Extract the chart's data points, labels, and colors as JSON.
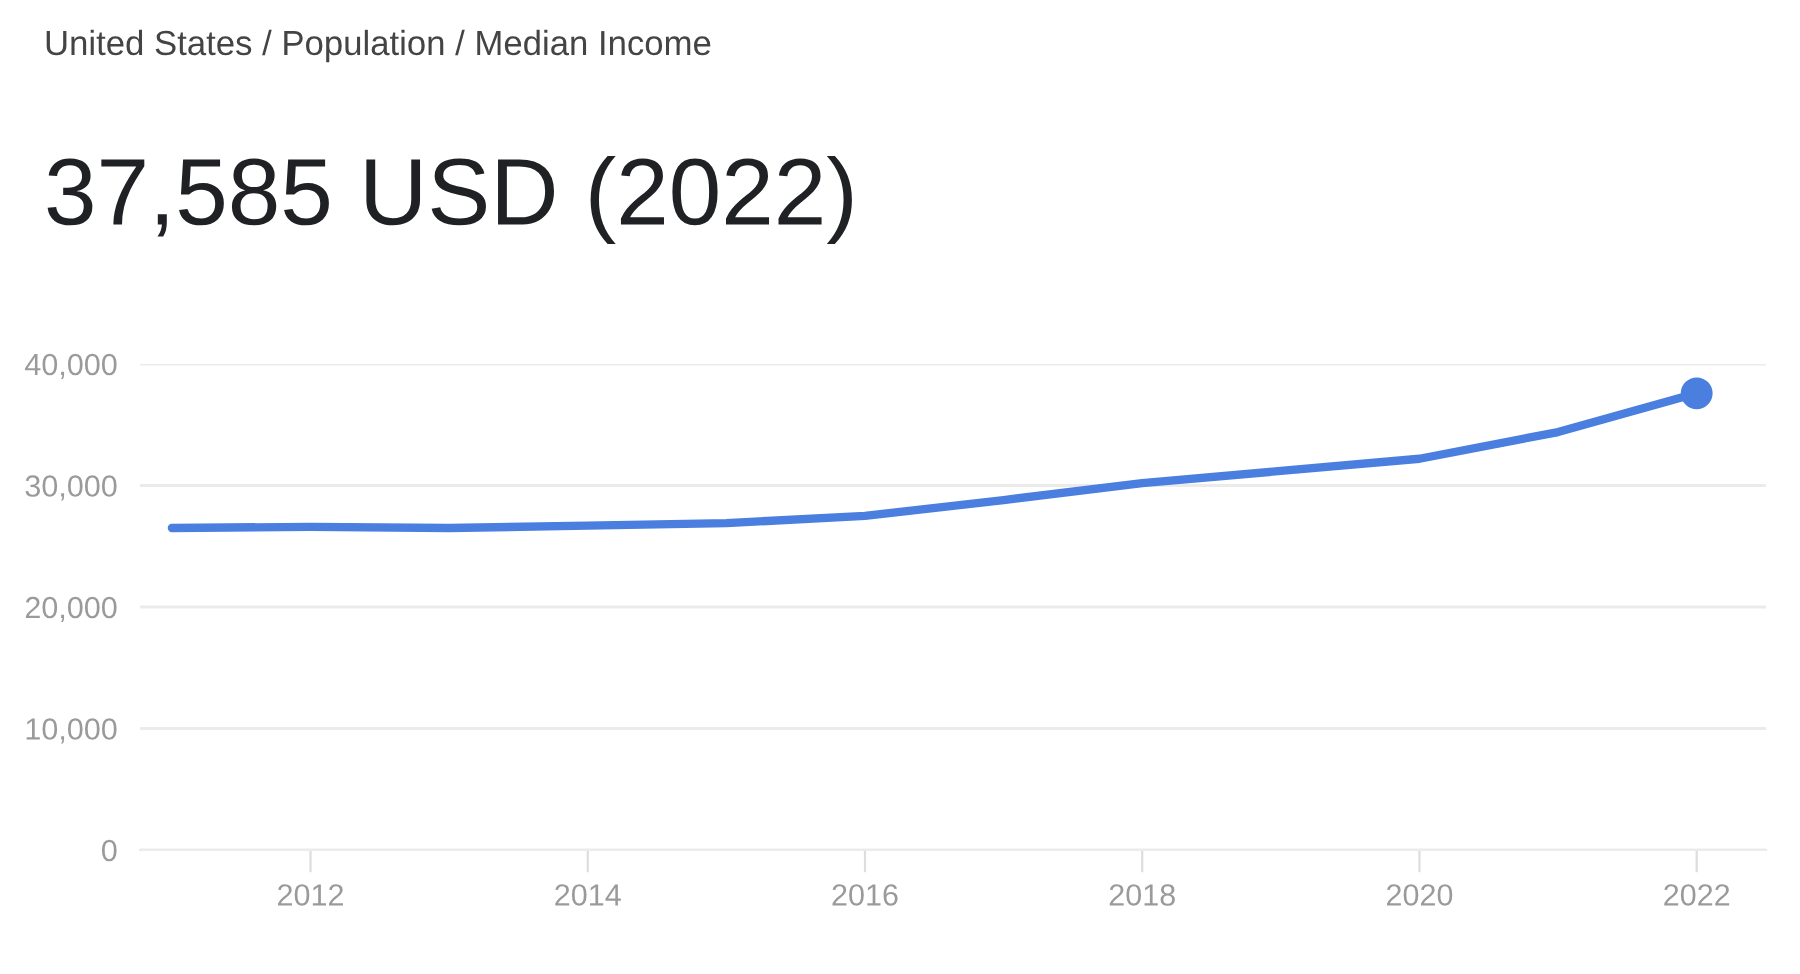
{
  "chart_data": {
    "type": "line",
    "title": "37,585 USD (2022)",
    "subtitle": "United States / Population / Median Income",
    "x": [
      2011,
      2012,
      2013,
      2014,
      2015,
      2016,
      2017,
      2018,
      2019,
      2020,
      2021,
      2022
    ],
    "series": [
      {
        "color": "#4a7fe0",
        "values": [
          26500,
          26600,
          26500,
          26700,
          26900,
          27500,
          28800,
          30200,
          31200,
          32200,
          34400,
          37585
        ]
      },
      {
        "type": "scatter",
        "color": "#4a7fe0",
        "x": [
          2022
        ],
        "values": [
          37585
        ]
      }
    ],
    "xlim": [
      2010.77,
      2022.5
    ],
    "ylim": [
      0,
      40000
    ],
    "xticks": [
      2012,
      2014,
      2016,
      2018,
      2020,
      2022
    ],
    "yticks": [
      {
        "value": 0,
        "label": "0"
      },
      {
        "value": 10000,
        "label": "10,000"
      },
      {
        "value": 20000,
        "label": "20,000"
      },
      {
        "value": 30000,
        "label": "30,000"
      },
      {
        "value": 40000,
        "label": "40,000"
      }
    ],
    "grid": "y",
    "line_style": "solid"
  }
}
